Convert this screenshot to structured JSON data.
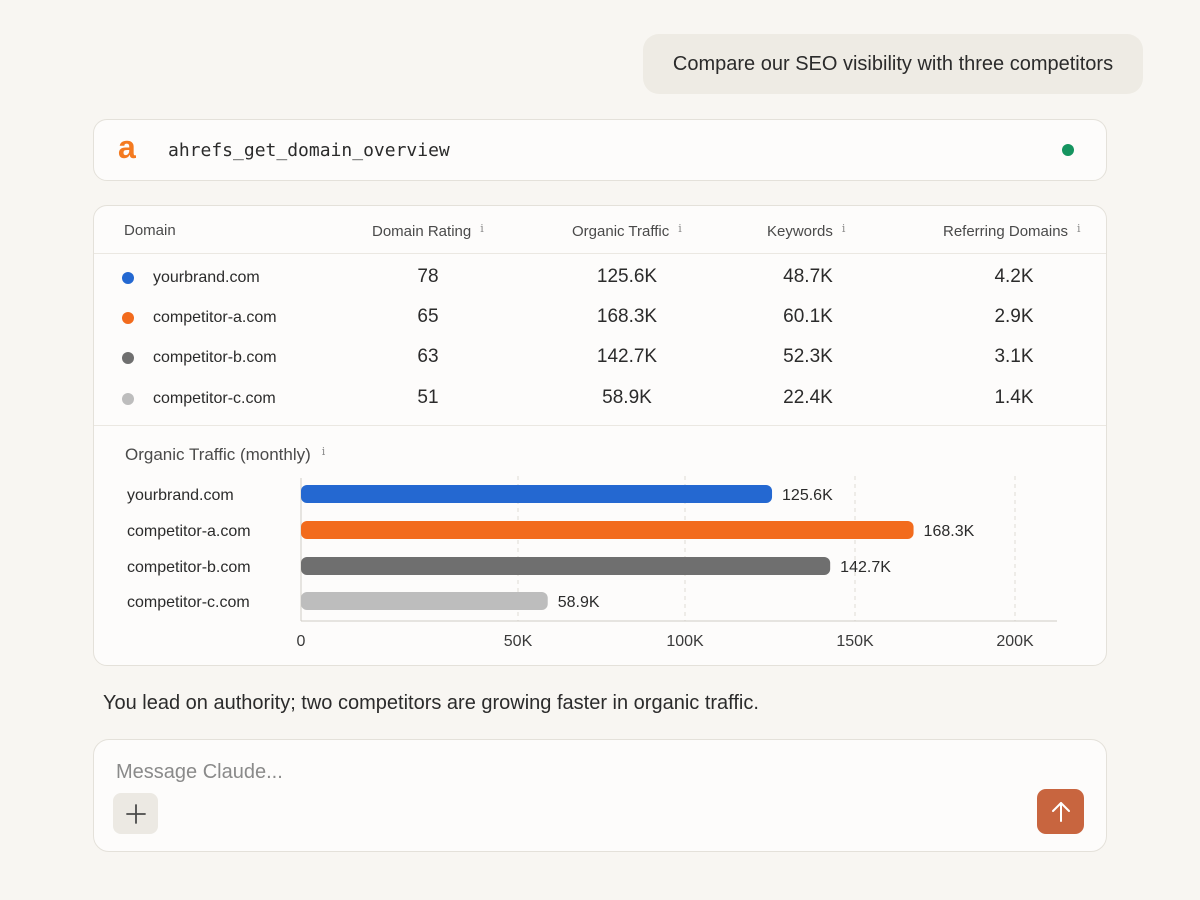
{
  "user_message": "Compare our SEO visibility with three competitors",
  "tool": {
    "logo_letter": "a",
    "name": "ahrefs_get_domain_overview",
    "logo_color": "#f47a20",
    "status_color": "#15945f"
  },
  "table": {
    "headers": {
      "domain": "Domain",
      "domain_rating": "Domain Rating",
      "organic_traffic": "Organic Traffic",
      "keywords": "Keywords",
      "referring_domains": "Referring Domains",
      "info_glyph": "i"
    },
    "rows": [
      {
        "domain": "yourbrand.com",
        "color": "#2468d1",
        "domain_rating": "78",
        "organic_traffic": "125.6K",
        "keywords": "48.7K",
        "referring_domains": "4.2K"
      },
      {
        "domain": "competitor-a.com",
        "color": "#f26b1d",
        "domain_rating": "65",
        "organic_traffic": "168.3K",
        "keywords": "60.1K",
        "referring_domains": "2.9K"
      },
      {
        "domain": "competitor-b.com",
        "color": "#6f6f6f",
        "domain_rating": "63",
        "organic_traffic": "142.7K",
        "keywords": "52.3K",
        "referring_domains": "3.1K"
      },
      {
        "domain": "competitor-c.com",
        "color": "#bdbdbd",
        "domain_rating": "51",
        "organic_traffic": "58.9K",
        "keywords": "22.4K",
        "referring_domains": "1.4K"
      }
    ]
  },
  "chart_title": "Organic Traffic (monthly)",
  "chart_data": {
    "type": "bar",
    "orientation": "horizontal",
    "title": "Organic Traffic (monthly)",
    "categories": [
      "yourbrand.com",
      "competitor-a.com",
      "competitor-b.com",
      "competitor-c.com"
    ],
    "values": [
      125.6,
      168.3,
      142.7,
      58.9
    ],
    "value_labels": [
      "125.6K",
      "168.3K",
      "142.7K",
      "58.9K"
    ],
    "colors": [
      "#2468d1",
      "#f26b1d",
      "#6f6f6f",
      "#bdbdbd"
    ],
    "xlim": [
      0,
      200
    ],
    "xticks": [
      0,
      50,
      100,
      150,
      200
    ],
    "xtick_labels": [
      "0",
      "50K",
      "100K",
      "150K",
      "200K"
    ],
    "xlabel": "",
    "ylabel": "",
    "grid": true
  },
  "assistant_message": "You lead on authority; two competitors are growing faster in organic traffic.",
  "composer": {
    "placeholder": "Message Claude...",
    "value": "",
    "plus_icon": "plus-icon",
    "send_icon": "arrow-up-icon",
    "send_color": "#c8653f"
  }
}
